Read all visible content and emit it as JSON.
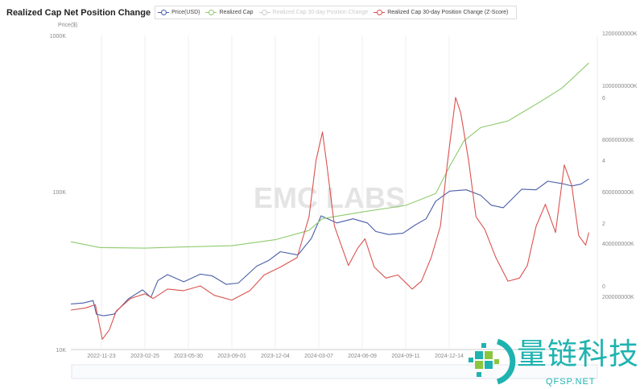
{
  "chart_data": {
    "type": "line",
    "title": "Realized Cap Net Position Change",
    "legend": [
      {
        "name": "Price(USD)",
        "color": "#4a5fa8",
        "visible": true
      },
      {
        "name": "Realized Cap",
        "color": "#8fcb6e",
        "visible": true
      },
      {
        "name": "Realized Cap 30-day Position Change",
        "color": "#bbbbbb",
        "visible": false
      },
      {
        "name": "Realized Cap 30-day Position Change (Z-Score)",
        "color": "#d9534f",
        "visible": true
      }
    ],
    "legend_position": "top",
    "grid": "vertical",
    "left_axis": {
      "label": "Price($)",
      "scale": "log",
      "range": [
        10000,
        1000000
      ],
      "ticks": [
        "1000K",
        "100K",
        "10K"
      ]
    },
    "right_axis_cap": {
      "range": [
        0,
        1200000000
      ],
      "unit": "K",
      "ticks": [
        "1200000000K",
        "1000000000K",
        "800000000K",
        "600000000K",
        "400000000K",
        "200000000K"
      ]
    },
    "right_axis_z": {
      "ticks": [
        "6",
        "4",
        "2",
        "0"
      ]
    },
    "x_ticks": [
      "2022-11-23",
      "2023-02-25",
      "2023-05-30",
      "2023-09-01",
      "2023-12-04",
      "2024-03-07",
      "2024-06-09",
      "2024-09-11",
      "2024-12-14"
    ],
    "series": [
      {
        "name": "Price(USD)",
        "axis": "price",
        "points": [
          [
            "2022-09-18",
            19500
          ],
          [
            "2022-10-15",
            19800
          ],
          [
            "2022-11-05",
            20500
          ],
          [
            "2022-11-12",
            16800
          ],
          [
            "2022-11-28",
            16400
          ],
          [
            "2022-12-20",
            16800
          ],
          [
            "2023-01-20",
            21000
          ],
          [
            "2023-02-20",
            24000
          ],
          [
            "2023-03-10",
            21500
          ],
          [
            "2023-03-25",
            27500
          ],
          [
            "2023-04-15",
            30000
          ],
          [
            "2023-05-20",
            27000
          ],
          [
            "2023-06-25",
            30200
          ],
          [
            "2023-07-20",
            29500
          ],
          [
            "2023-08-20",
            26000
          ],
          [
            "2023-09-15",
            26500
          ],
          [
            "2023-10-25",
            34000
          ],
          [
            "2023-11-20",
            37000
          ],
          [
            "2023-12-15",
            42000
          ],
          [
            "2024-01-22",
            40000
          ],
          [
            "2024-02-20",
            51000
          ],
          [
            "2024-03-12",
            71000
          ],
          [
            "2024-04-15",
            64000
          ],
          [
            "2024-05-20",
            68000
          ],
          [
            "2024-06-20",
            64000
          ],
          [
            "2024-07-08",
            56500
          ],
          [
            "2024-08-05",
            54000
          ],
          [
            "2024-09-05",
            55000
          ],
          [
            "2024-10-01",
            62000
          ],
          [
            "2024-10-25",
            68000
          ],
          [
            "2024-11-15",
            88000
          ],
          [
            "2024-12-15",
            102000
          ],
          [
            "2025-01-20",
            104000
          ],
          [
            "2025-02-20",
            96000
          ],
          [
            "2025-03-15",
            83000
          ],
          [
            "2025-04-10",
            80000
          ],
          [
            "2025-05-20",
            105000
          ],
          [
            "2025-06-20",
            104000
          ],
          [
            "2025-07-15",
            118000
          ],
          [
            "2025-08-15",
            114000
          ],
          [
            "2025-09-05",
            110000
          ],
          [
            "2025-09-25",
            113000
          ],
          [
            "2025-10-12",
            122000
          ]
        ]
      },
      {
        "name": "Realized Cap",
        "axis": "cap",
        "points": [
          [
            "2022-09-18",
            407000000
          ],
          [
            "2022-11-20",
            385000000
          ],
          [
            "2023-02-25",
            383000000
          ],
          [
            "2023-05-30",
            388000000
          ],
          [
            "2023-09-01",
            392000000
          ],
          [
            "2023-12-04",
            415000000
          ],
          [
            "2024-02-15",
            450000000
          ],
          [
            "2024-03-15",
            495000000
          ],
          [
            "2024-06-09",
            520000000
          ],
          [
            "2024-09-11",
            545000000
          ],
          [
            "2024-11-15",
            590000000
          ],
          [
            "2024-12-14",
            690000000
          ],
          [
            "2025-01-15",
            790000000
          ],
          [
            "2025-02-20",
            840000000
          ],
          [
            "2025-04-20",
            865000000
          ],
          [
            "2025-07-01",
            940000000
          ],
          [
            "2025-08-15",
            990000000
          ],
          [
            "2025-10-12",
            1085000000
          ]
        ]
      },
      {
        "name": "Realized Cap 30-day Position Change (Z-Score)",
        "axis": "z",
        "points": [
          [
            "2022-09-18",
            -0.77
          ],
          [
            "2022-10-20",
            -0.7
          ],
          [
            "2022-11-10",
            -0.6
          ],
          [
            "2022-11-25",
            -1.7
          ],
          [
            "2022-12-10",
            -1.4
          ],
          [
            "2022-12-25",
            -0.8
          ],
          [
            "2023-01-25",
            -0.4
          ],
          [
            "2023-02-25",
            -0.25
          ],
          [
            "2023-03-15",
            -0.4
          ],
          [
            "2023-04-15",
            -0.1
          ],
          [
            "2023-05-20",
            -0.15
          ],
          [
            "2023-06-25",
            0
          ],
          [
            "2023-07-25",
            -0.3
          ],
          [
            "2023-09-01",
            -0.45
          ],
          [
            "2023-10-10",
            -0.15
          ],
          [
            "2023-11-10",
            0.35
          ],
          [
            "2023-12-15",
            0.6
          ],
          [
            "2024-01-20",
            0.9
          ],
          [
            "2024-02-15",
            2.2
          ],
          [
            "2024-03-01",
            4.0
          ],
          [
            "2024-03-15",
            4.9
          ],
          [
            "2024-03-25",
            3.8
          ],
          [
            "2024-04-10",
            1.9
          ],
          [
            "2024-05-10",
            0.65
          ],
          [
            "2024-05-30",
            1.2
          ],
          [
            "2024-06-15",
            1.5
          ],
          [
            "2024-07-05",
            0.6
          ],
          [
            "2024-07-30",
            0.25
          ],
          [
            "2024-08-25",
            0.35
          ],
          [
            "2024-09-25",
            -0.1
          ],
          [
            "2024-10-15",
            0.15
          ],
          [
            "2024-11-05",
            0.9
          ],
          [
            "2024-11-25",
            1.9
          ],
          [
            "2024-12-10",
            3.9
          ],
          [
            "2024-12-28",
            6.0
          ],
          [
            "2025-01-08",
            5.5
          ],
          [
            "2025-01-25",
            4.0
          ],
          [
            "2025-02-10",
            2.2
          ],
          [
            "2025-03-01",
            1.8
          ],
          [
            "2025-03-25",
            0.9
          ],
          [
            "2025-04-20",
            0.15
          ],
          [
            "2025-05-15",
            0.25
          ],
          [
            "2025-06-01",
            0.65
          ],
          [
            "2025-06-20",
            1.9
          ],
          [
            "2025-07-10",
            2.6
          ],
          [
            "2025-08-01",
            1.7
          ],
          [
            "2025-08-20",
            3.85
          ],
          [
            "2025-09-05",
            3.2
          ],
          [
            "2025-09-20",
            1.6
          ],
          [
            "2025-10-05",
            1.3
          ],
          [
            "2025-10-12",
            1.7
          ]
        ]
      }
    ]
  },
  "watermark": "EMC LABS",
  "logo": {
    "name": "量链科技",
    "url_text": "QFSP.NET"
  }
}
